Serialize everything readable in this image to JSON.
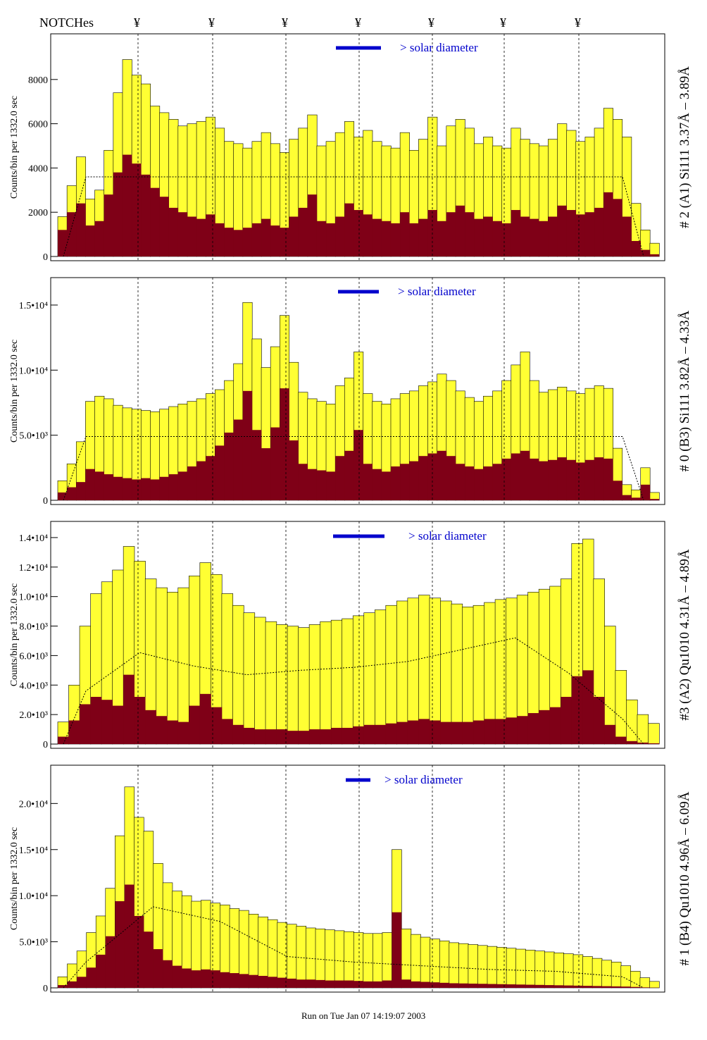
{
  "header": {
    "notches_label": "NOTCHes",
    "notch_symbol": "¥"
  },
  "footer": {
    "run_text": "Run on Tue Jan 07 14:19:07 2003"
  },
  "legend_text": "> solar diameter",
  "colors": {
    "yellow_fill": "#ffff33",
    "dark_fill": "#7f0017",
    "legend": "#0000cc",
    "frame": "#000000"
  },
  "chart_data": [
    {
      "type": "bar",
      "title": "# 2 (A1) Si111  3.37Å – 3.89Å",
      "ylabel": "Counts/bin per   1332.0 sec",
      "ylim": [
        0,
        10000
      ],
      "yticks": [
        0,
        2000,
        4000,
        6000,
        8000
      ],
      "ytick_labels": [
        "0",
        "2000",
        "4000",
        "6000",
        "8000"
      ],
      "series": [
        {
          "name": "total counts",
          "values": [
            1800,
            3200,
            4500,
            2600,
            3000,
            4800,
            7400,
            8900,
            8200,
            7800,
            6800,
            6500,
            6200,
            5900,
            6000,
            6100,
            6300,
            5800,
            5200,
            5100,
            4900,
            5200,
            5600,
            5100,
            4700,
            5300,
            5800,
            6400,
            5000,
            5200,
            5600,
            6100,
            5400,
            5700,
            5200,
            5000,
            4900,
            5600,
            4800,
            5300,
            6300,
            5000,
            5900,
            6200,
            5800,
            5100,
            5400,
            5000,
            4900,
            5800,
            5300,
            5100,
            5000,
            5300,
            6000,
            5700,
            5200,
            5400,
            5800,
            6700,
            6200,
            5400,
            2400,
            1200,
            600
          ]
        },
        {
          "name": "dark counts",
          "values": [
            1200,
            2000,
            2400,
            1400,
            1600,
            2800,
            3800,
            4600,
            4200,
            3700,
            3100,
            2700,
            2200,
            2000,
            1800,
            1700,
            1900,
            1500,
            1300,
            1200,
            1300,
            1500,
            1700,
            1400,
            1300,
            1800,
            2200,
            2800,
            1600,
            1500,
            1800,
            2400,
            2100,
            1900,
            1700,
            1600,
            1500,
            2000,
            1500,
            1700,
            2100,
            1600,
            2000,
            2300,
            2000,
            1700,
            1800,
            1600,
            1500,
            2100,
            1800,
            1700,
            1600,
            1800,
            2300,
            2100,
            1900,
            2000,
            2200,
            2900,
            2600,
            1800,
            700,
            300,
            100
          ]
        },
        {
          "name": "model",
          "values": [
            3600,
            3600,
            3600
          ]
        }
      ]
    },
    {
      "type": "bar",
      "title": "# 0 (B3) Si111  3.82Å – 4.33Å",
      "ylabel": "Counts/bin per   1332.0 sec",
      "ylim": [
        0,
        17000
      ],
      "yticks": [
        0,
        5000,
        10000,
        15000
      ],
      "ytick_labels": [
        "0",
        "5.0•10³",
        "1.0•10⁴",
        "1.5•10⁴"
      ],
      "series": [
        {
          "name": "total counts",
          "values": [
            1500,
            2800,
            4500,
            7600,
            8000,
            7800,
            7300,
            7100,
            7000,
            6900,
            6800,
            7000,
            7200,
            7400,
            7600,
            7800,
            8200,
            8500,
            9200,
            10500,
            15200,
            12400,
            10200,
            11800,
            14200,
            10600,
            8300,
            7800,
            7600,
            7400,
            8800,
            9400,
            11400,
            8200,
            7600,
            7400,
            7800,
            8200,
            8400,
            8800,
            9100,
            9700,
            9200,
            8400,
            7900,
            7600,
            8000,
            8400,
            9200,
            10400,
            11400,
            9200,
            8300,
            8500,
            8700,
            8400,
            8200,
            8600,
            8800,
            8600,
            4000,
            1200,
            800,
            2500,
            600
          ]
        },
        {
          "name": "dark counts",
          "values": [
            600,
            1000,
            1400,
            2400,
            2200,
            2000,
            1800,
            1700,
            1600,
            1700,
            1600,
            1800,
            2000,
            2200,
            2600,
            3000,
            3400,
            4200,
            5200,
            6200,
            8400,
            5400,
            4000,
            5600,
            8600,
            4600,
            2800,
            2400,
            2300,
            2200,
            3400,
            3800,
            5400,
            2800,
            2400,
            2200,
            2600,
            2800,
            3000,
            3400,
            3600,
            3800,
            3400,
            2800,
            2600,
            2400,
            2600,
            2800,
            3200,
            3600,
            3800,
            3200,
            3000,
            3100,
            3300,
            3100,
            2900,
            3100,
            3300,
            3200,
            1500,
            400,
            200,
            1200,
            100
          ]
        },
        {
          "name": "model",
          "values": [
            4900,
            4900,
            4900
          ]
        }
      ]
    },
    {
      "type": "bar",
      "title": "#3 (A2) Qu1010  4.31Å – 4.89Å",
      "ylabel": "Counts/bin per   1332.0 sec",
      "ylim": [
        0,
        15000
      ],
      "yticks": [
        0,
        2000,
        4000,
        6000,
        8000,
        10000,
        12000,
        14000
      ],
      "ytick_labels": [
        "0",
        "2.0•10³",
        "4.0•10³",
        "6.0•10³",
        "8.0•10³",
        "1.0•10⁴",
        "1.2•10⁴",
        "1.4•10⁴"
      ],
      "series": [
        {
          "name": "total counts",
          "values": [
            1500,
            4000,
            8000,
            10200,
            11000,
            11800,
            13400,
            12400,
            11200,
            10600,
            10300,
            10600,
            11400,
            12300,
            11500,
            10200,
            9400,
            8900,
            8600,
            8300,
            8100,
            8000,
            7900,
            8100,
            8300,
            8400,
            8500,
            8700,
            8900,
            9100,
            9400,
            9700,
            9900,
            10100,
            9900,
            9700,
            9500,
            9300,
            9400,
            9600,
            9800,
            9900,
            10100,
            10300,
            10500,
            10700,
            11200,
            13600,
            13900,
            11200,
            8000,
            5000,
            3000,
            2000,
            1400
          ]
        },
        {
          "name": "dark counts",
          "values": [
            500,
            1600,
            2700,
            3200,
            3000,
            2600,
            4700,
            3200,
            2300,
            1900,
            1600,
            1500,
            2600,
            3400,
            2500,
            1700,
            1300,
            1100,
            1000,
            1000,
            1000,
            900,
            900,
            1000,
            1000,
            1100,
            1100,
            1200,
            1300,
            1300,
            1400,
            1500,
            1600,
            1700,
            1600,
            1500,
            1500,
            1500,
            1600,
            1700,
            1700,
            1800,
            1900,
            2100,
            2300,
            2500,
            3200,
            4600,
            5000,
            3200,
            1300,
            500,
            200,
            100,
            50
          ]
        },
        {
          "name": "model",
          "values": [
            3600,
            6200,
            5300,
            4700,
            5000,
            5200,
            5600,
            6400,
            7200,
            4800,
            1700
          ]
        }
      ]
    },
    {
      "type": "bar",
      "title": "# 1 (B4) Qu1010 4.96Å – 6.09Å",
      "ylabel": "Counts/bin per   1332.0 sec",
      "ylim": [
        0,
        24000
      ],
      "yticks": [
        0,
        5000,
        10000,
        15000,
        20000
      ],
      "ytick_labels": [
        "0",
        "5.0•10³",
        "1.0•10⁴",
        "1.5•10⁴",
        "2.0•10⁴"
      ],
      "series": [
        {
          "name": "total counts",
          "values": [
            1200,
            2600,
            4000,
            6000,
            7800,
            10800,
            16500,
            21800,
            18500,
            17000,
            13500,
            11400,
            10500,
            10000,
            9400,
            9500,
            9200,
            9000,
            8600,
            8400,
            8000,
            7700,
            7400,
            7100,
            6900,
            6700,
            6500,
            6400,
            6300,
            6200,
            6100,
            6000,
            5900,
            5900,
            6000,
            15000,
            6400,
            5800,
            5500,
            5300,
            5100,
            4900,
            4800,
            4700,
            4600,
            4500,
            4400,
            4300,
            4200,
            4100,
            4000,
            3900,
            3800,
            3700,
            3600,
            3400,
            3200,
            3000,
            2800,
            2400,
            1800,
            1100,
            700
          ]
        },
        {
          "name": "dark counts",
          "values": [
            300,
            700,
            1200,
            2200,
            3600,
            5600,
            9400,
            11200,
            7800,
            6100,
            4200,
            3000,
            2400,
            2100,
            1900,
            2000,
            1900,
            1700,
            1600,
            1500,
            1400,
            1300,
            1200,
            1100,
            1000,
            900,
            900,
            850,
            800,
            800,
            800,
            750,
            700,
            700,
            800,
            8200,
            900,
            700,
            650,
            600,
            550,
            500,
            480,
            460,
            440,
            420,
            400,
            380,
            360,
            340,
            320,
            300,
            280,
            260,
            240,
            220,
            200,
            180,
            160,
            140,
            100,
            50,
            20
          ]
        },
        {
          "name": "model",
          "values": [
            2800,
            8800,
            7200,
            3400,
            2800,
            2400,
            2000,
            1800,
            1200
          ]
        }
      ]
    }
  ]
}
